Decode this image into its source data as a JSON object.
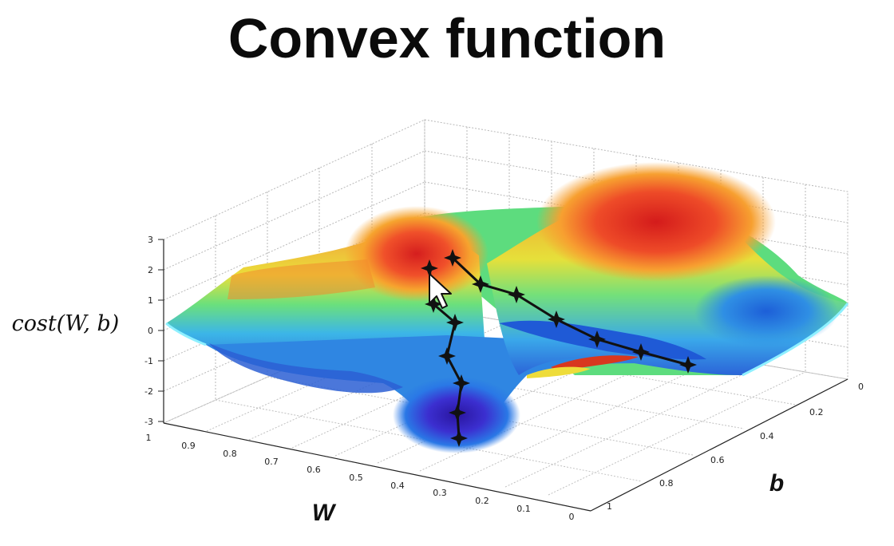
{
  "title": "Convex function",
  "chart_data": {
    "type": "surface",
    "title": "Convex function",
    "xlabel": "W",
    "ylabel": "b",
    "zlabel": "cost(W, b)",
    "x_ticks": [
      "1",
      "0.9",
      "0.8",
      "0.7",
      "0.6",
      "0.5",
      "0.4",
      "0.3",
      "0.2",
      "0.1",
      "0"
    ],
    "y_ticks": [
      "0",
      "0.2",
      "0.4",
      "0.6",
      "0.8",
      "1"
    ],
    "z_ticks": [
      "3",
      "2",
      "1",
      "0",
      "-1",
      "-2",
      "-3"
    ],
    "xlim": [
      1,
      0
    ],
    "ylim": [
      0,
      1
    ],
    "zlim": [
      -3,
      3
    ],
    "grid": true,
    "colormap": [
      "#1a1aa8",
      "#1e6be0",
      "#2fb0e8",
      "#54e08a",
      "#e6e63a",
      "#f59a2a",
      "#d91e1e"
    ],
    "descent_paths": [
      {
        "start_z": 2,
        "points_z": [
          2.0,
          0.8,
          0.2,
          -0.9,
          -1.7,
          -2.6,
          -3.0
        ]
      },
      {
        "start_z": 2.3,
        "points_z": [
          2.3,
          1.5,
          1.1,
          0.4,
          -0.4,
          -0.8,
          -1.3
        ]
      }
    ]
  }
}
